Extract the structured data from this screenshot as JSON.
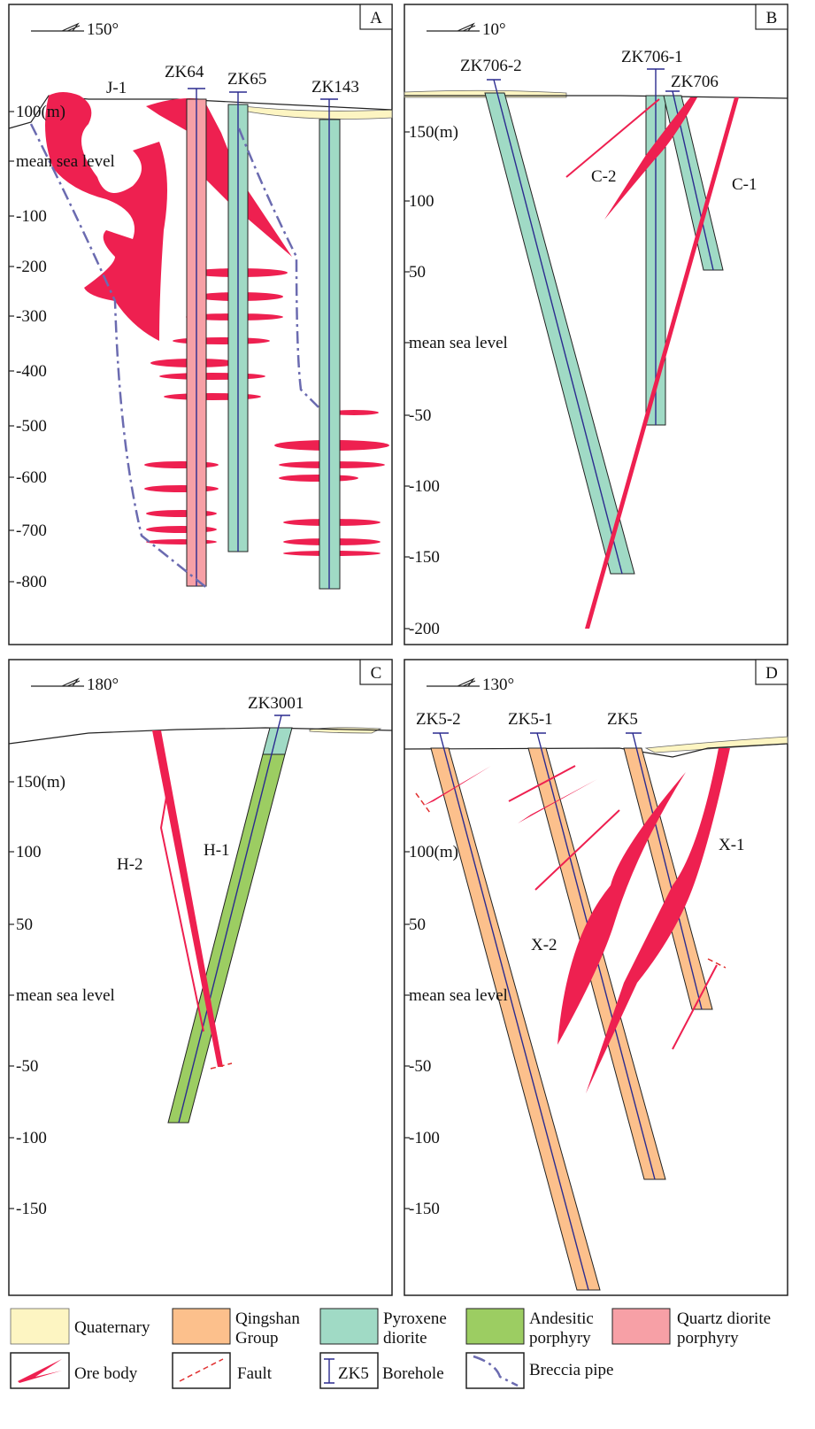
{
  "panels": [
    {
      "letter": "A",
      "azimuth": "150°",
      "elevations": [
        "100(m)",
        "mean sea level",
        "-100",
        "-200",
        "-300",
        "-400",
        "-500",
        "-600",
        "-700",
        "-800"
      ],
      "boreholes": [
        "ZK64",
        "ZK65",
        "ZK143"
      ],
      "ore_labels": [
        "J-1"
      ]
    },
    {
      "letter": "B",
      "azimuth": "10°",
      "elevations": [
        "150(m)",
        "100",
        "50",
        "mean sea level",
        "-50",
        "-100",
        "-150",
        "-200"
      ],
      "boreholes": [
        "ZK706-2",
        "ZK706-1",
        "ZK706"
      ],
      "ore_labels": [
        "C-2",
        "C-1"
      ]
    },
    {
      "letter": "C",
      "azimuth": "180°",
      "elevations": [
        "150(m)",
        "100",
        "50",
        "mean sea level",
        "-50",
        "-100",
        "-150"
      ],
      "boreholes": [
        "ZK3001"
      ],
      "ore_labels": [
        "H-2",
        "H-1"
      ]
    },
    {
      "letter": "D",
      "azimuth": "130°",
      "elevations": [
        "100(m)",
        "50",
        "mean sea level",
        "-50",
        "-100",
        "-150"
      ],
      "boreholes": [
        "ZK5-2",
        "ZK5-1",
        "ZK5"
      ],
      "ore_labels": [
        "X-1",
        "X-2"
      ]
    }
  ],
  "legend": {
    "quaternary": [
      "Quaternary"
    ],
    "qingshan": [
      "Qingshan",
      "Group"
    ],
    "pyroxene": [
      "Pyroxene",
      "diorite"
    ],
    "andesitic": [
      "Andesitic",
      "porphyry"
    ],
    "quartz": [
      "Quartz diorite",
      "porphyry"
    ],
    "ore": [
      "Ore body"
    ],
    "fault": [
      "Fault"
    ],
    "borehole_symbol": "ZK5",
    "borehole": [
      "Borehole"
    ],
    "breccia": [
      "Breccia pipe"
    ]
  }
}
